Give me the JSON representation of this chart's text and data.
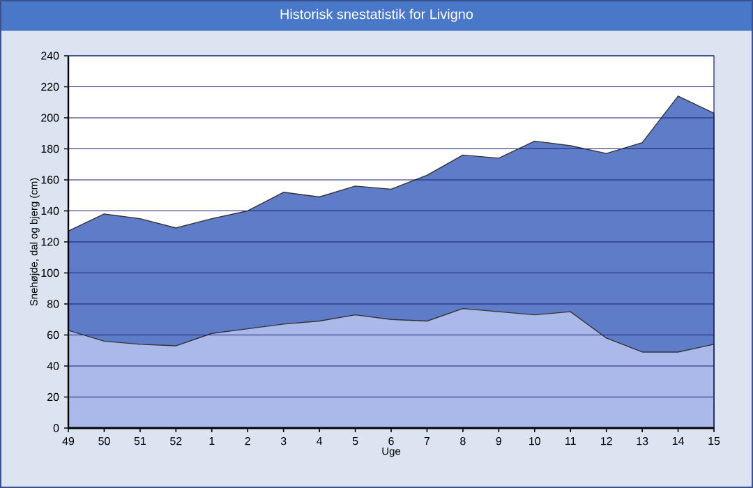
{
  "chart_data": {
    "type": "area",
    "title": "Historisk snestatistik for Livigno",
    "xlabel": "Uge",
    "ylabel": "Snehøjde, dal og bjerg (cm)",
    "categories": [
      "49",
      "50",
      "51",
      "52",
      "1",
      "2",
      "3",
      "4",
      "5",
      "6",
      "7",
      "8",
      "9",
      "10",
      "11",
      "12",
      "13",
      "14",
      "15"
    ],
    "series": [
      {
        "color": "#5f7cc8",
        "values": [
          127,
          138,
          135,
          129,
          135,
          140,
          152,
          149,
          156,
          154,
          163,
          176,
          174,
          185,
          182,
          177,
          184,
          214,
          203
        ]
      },
      {
        "color": "#aab9ea",
        "values": [
          63,
          56,
          54,
          53,
          61,
          64,
          67,
          69,
          73,
          70,
          69,
          77,
          75,
          73,
          75,
          58,
          49,
          49,
          54
        ]
      }
    ],
    "ylim": [
      0,
      240
    ],
    "yticks": [
      0,
      20,
      40,
      60,
      80,
      100,
      120,
      140,
      160,
      180,
      200,
      220,
      240
    ],
    "grid": "y"
  }
}
